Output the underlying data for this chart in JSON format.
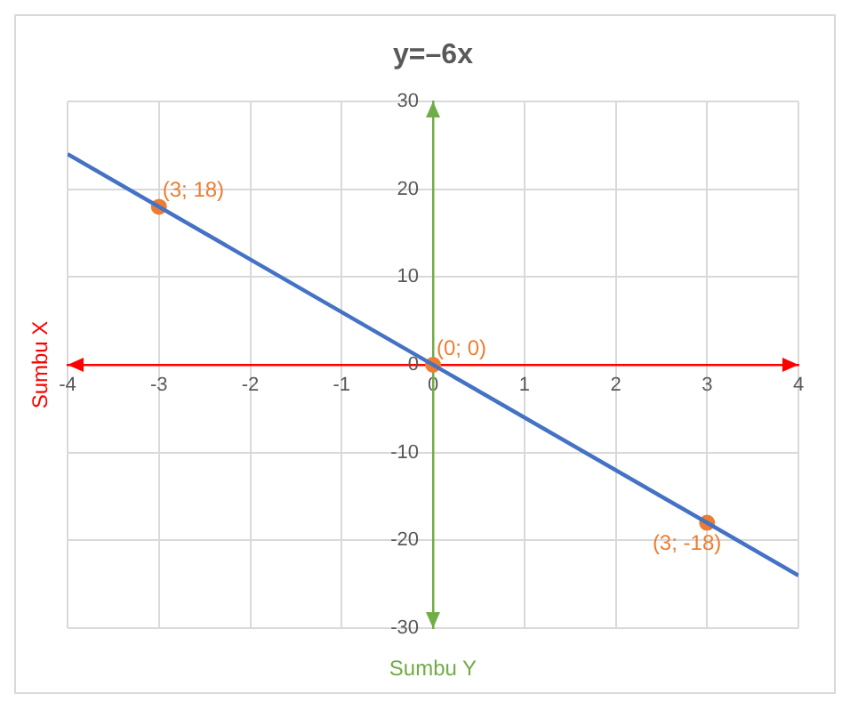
{
  "chart_data": {
    "type": "line",
    "title": "y=–6x",
    "xlabel": "Sumbu Y",
    "ylabel": "Sumbu X",
    "xlim": [
      -4,
      4
    ],
    "xticks": [
      -4,
      -3,
      -2,
      -1,
      0,
      1,
      2,
      3,
      4
    ],
    "ylim": [
      -30,
      30
    ],
    "yticks": [
      -30,
      -20,
      -10,
      0,
      10,
      20,
      30
    ],
    "grid": true,
    "legend": false,
    "series": [
      {
        "type": "line",
        "marker": "none",
        "color": "#4472c4",
        "x": [
          -4,
          4
        ],
        "values": [
          24,
          -24
        ]
      },
      {
        "type": "scatter",
        "marker": "circle",
        "color": "#ed7d31",
        "x": [
          -3,
          0,
          3
        ],
        "values": [
          18,
          0,
          -18
        ],
        "value_labels": [
          "(3; 18)",
          "(0; 0)",
          "(3; -18)"
        ]
      }
    ]
  }
}
